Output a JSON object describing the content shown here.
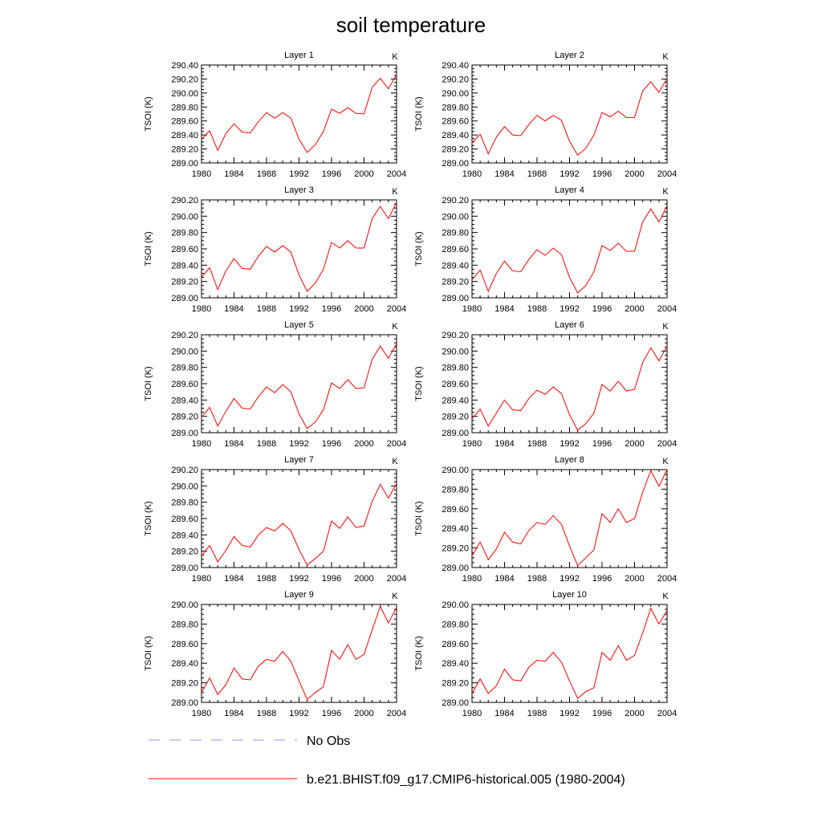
{
  "figure": {
    "title": "soil temperature"
  },
  "legend": [
    {
      "label": "No Obs",
      "color": "#9a9ae6",
      "dash": "dashed"
    },
    {
      "label": "b.e21.BHIST.f09_g17.CMIP6-historical.005 (1980-2004)",
      "color": "#ff0000",
      "dash": "solid"
    }
  ],
  "chart_data": [
    {
      "type": "line",
      "title": "Layer 1",
      "units": "K",
      "ylabel": "TSOI  (K)",
      "xlim": [
        1980,
        2004
      ],
      "ylim": [
        289.0,
        290.4
      ],
      "xticks": [
        "1980",
        "1984",
        "1988",
        "1992",
        "1996",
        "2000",
        "2004"
      ],
      "yticks": [
        "289.00",
        "289.20",
        "289.40",
        "289.60",
        "289.80",
        "290.00",
        "290.20",
        "290.40"
      ],
      "x": [
        1980,
        1981,
        1982,
        1983,
        1984,
        1985,
        1986,
        1987,
        1988,
        1989,
        1990,
        1991,
        1992,
        1993,
        1994,
        1995,
        1996,
        1997,
        1998,
        1999,
        2000,
        2001,
        2002,
        2003,
        2004
      ],
      "series": [
        {
          "color": "#ff0000",
          "values": [
            289.34,
            289.46,
            289.18,
            289.42,
            289.56,
            289.44,
            289.43,
            289.59,
            289.72,
            289.64,
            289.72,
            289.64,
            289.34,
            289.15,
            289.26,
            289.45,
            289.77,
            289.71,
            289.79,
            289.71,
            289.7,
            290.08,
            290.21,
            290.06,
            290.26
          ]
        }
      ]
    },
    {
      "type": "line",
      "title": "Layer 2",
      "units": "K",
      "ylabel": "TSOI  (K)",
      "xlim": [
        1980,
        2004
      ],
      "ylim": [
        289.0,
        290.4
      ],
      "xticks": [
        "1980",
        "1984",
        "1988",
        "1992",
        "1996",
        "2000",
        "2004"
      ],
      "yticks": [
        "289.00",
        "289.20",
        "289.40",
        "289.60",
        "289.80",
        "290.00",
        "290.20",
        "290.40"
      ],
      "x": [
        1980,
        1981,
        1982,
        1983,
        1984,
        1985,
        1986,
        1987,
        1988,
        1989,
        1990,
        1991,
        1992,
        1993,
        1994,
        1995,
        1996,
        1997,
        1998,
        1999,
        2000,
        2001,
        2002,
        2003,
        2004
      ],
      "series": [
        {
          "color": "#ff0000",
          "values": [
            289.29,
            289.41,
            289.13,
            289.37,
            289.52,
            289.4,
            289.39,
            289.55,
            289.68,
            289.6,
            289.68,
            289.61,
            289.31,
            289.11,
            289.21,
            289.4,
            289.72,
            289.66,
            289.74,
            289.65,
            289.65,
            290.03,
            290.16,
            290.01,
            290.21
          ]
        }
      ]
    },
    {
      "type": "line",
      "title": "Layer 3",
      "units": "K",
      "ylabel": "TSOI  (K)",
      "xlim": [
        1980,
        2004
      ],
      "ylim": [
        289.0,
        290.2
      ],
      "xticks": [
        "1980",
        "1984",
        "1988",
        "1992",
        "1996",
        "2000",
        "2004"
      ],
      "yticks": [
        "289.00",
        "289.20",
        "289.40",
        "289.60",
        "289.80",
        "290.00",
        "290.20"
      ],
      "x": [
        1980,
        1981,
        1982,
        1983,
        1984,
        1985,
        1986,
        1987,
        1988,
        1989,
        1990,
        1991,
        1992,
        1993,
        1994,
        1995,
        1996,
        1997,
        1998,
        1999,
        2000,
        2001,
        2002,
        2003,
        2004
      ],
      "series": [
        {
          "color": "#ff0000",
          "values": [
            289.25,
            289.37,
            289.1,
            289.33,
            289.48,
            289.36,
            289.35,
            289.51,
            289.63,
            289.56,
            289.64,
            289.56,
            289.28,
            289.08,
            289.18,
            289.35,
            289.68,
            289.61,
            289.7,
            289.61,
            289.61,
            289.97,
            290.12,
            289.97,
            290.17
          ]
        }
      ]
    },
    {
      "type": "line",
      "title": "Layer 4",
      "units": "K",
      "ylabel": "TSOI  (K)",
      "xlim": [
        1980,
        2004
      ],
      "ylim": [
        289.0,
        290.2
      ],
      "xticks": [
        "1980",
        "1984",
        "1988",
        "1992",
        "1996",
        "2000",
        "2004"
      ],
      "yticks": [
        "289.00",
        "289.20",
        "289.40",
        "289.60",
        "289.80",
        "290.00",
        "290.20"
      ],
      "x": [
        1980,
        1981,
        1982,
        1983,
        1984,
        1985,
        1986,
        1987,
        1988,
        1989,
        1990,
        1991,
        1992,
        1993,
        1994,
        1995,
        1996,
        1997,
        1998,
        1999,
        2000,
        2001,
        2002,
        2003,
        2004
      ],
      "series": [
        {
          "color": "#ff0000",
          "values": [
            289.22,
            289.34,
            289.08,
            289.3,
            289.45,
            289.33,
            289.32,
            289.47,
            289.59,
            289.52,
            289.61,
            289.53,
            289.25,
            289.06,
            289.15,
            289.32,
            289.64,
            289.58,
            289.67,
            289.57,
            289.57,
            289.93,
            290.09,
            289.93,
            290.13
          ]
        }
      ]
    },
    {
      "type": "line",
      "title": "Layer 5",
      "units": "K",
      "ylabel": "TSOI  (K)",
      "xlim": [
        1980,
        2004
      ],
      "ylim": [
        289.0,
        290.2
      ],
      "xticks": [
        "1980",
        "1984",
        "1988",
        "1992",
        "1996",
        "2000",
        "2004"
      ],
      "yticks": [
        "289.00",
        "289.20",
        "289.40",
        "289.60",
        "289.80",
        "290.00",
        "290.20"
      ],
      "x": [
        1980,
        1981,
        1982,
        1983,
        1984,
        1985,
        1986,
        1987,
        1988,
        1989,
        1990,
        1991,
        1992,
        1993,
        1994,
        1995,
        1996,
        1997,
        1998,
        1999,
        2000,
        2001,
        2002,
        2003,
        2004
      ],
      "series": [
        {
          "color": "#ff0000",
          "values": [
            289.19,
            289.31,
            289.08,
            289.26,
            289.42,
            289.3,
            289.29,
            289.44,
            289.56,
            289.49,
            289.59,
            289.5,
            289.23,
            289.05,
            289.13,
            289.28,
            289.61,
            289.54,
            289.65,
            289.54,
            289.55,
            289.9,
            290.06,
            289.91,
            290.09
          ]
        }
      ]
    },
    {
      "type": "line",
      "title": "Layer 6",
      "units": "K",
      "ylabel": "TSOI  (K)",
      "xlim": [
        1980,
        2004
      ],
      "ylim": [
        289.0,
        290.2
      ],
      "xticks": [
        "1980",
        "1984",
        "1988",
        "1992",
        "1996",
        "2000",
        "2004"
      ],
      "yticks": [
        "289.00",
        "289.20",
        "289.40",
        "289.60",
        "289.80",
        "290.00",
        "290.20"
      ],
      "x": [
        1980,
        1981,
        1982,
        1983,
        1984,
        1985,
        1986,
        1987,
        1988,
        1989,
        1990,
        1991,
        1992,
        1993,
        1994,
        1995,
        1996,
        1997,
        1998,
        1999,
        2000,
        2001,
        2002,
        2003,
        2004
      ],
      "series": [
        {
          "color": "#ff0000",
          "values": [
            289.17,
            289.29,
            289.08,
            289.24,
            289.4,
            289.28,
            289.27,
            289.42,
            289.52,
            289.47,
            289.56,
            289.48,
            289.22,
            289.03,
            289.11,
            289.24,
            289.59,
            289.51,
            289.63,
            289.51,
            289.53,
            289.86,
            290.04,
            289.88,
            290.06
          ]
        }
      ]
    },
    {
      "type": "line",
      "title": "Layer 7",
      "units": "K",
      "ylabel": "TSOI  (K)",
      "xlim": [
        1980,
        2004
      ],
      "ylim": [
        289.0,
        290.2
      ],
      "xticks": [
        "1980",
        "1984",
        "1988",
        "1992",
        "1996",
        "2000",
        "2004"
      ],
      "yticks": [
        "289.00",
        "289.20",
        "289.40",
        "289.60",
        "289.80",
        "290.00",
        "290.20"
      ],
      "x": [
        1980,
        1981,
        1982,
        1983,
        1984,
        1985,
        1986,
        1987,
        1988,
        1989,
        1990,
        1991,
        1992,
        1993,
        1994,
        1995,
        1996,
        1997,
        1998,
        1999,
        2000,
        2001,
        2002,
        2003,
        2004
      ],
      "series": [
        {
          "color": "#ff0000",
          "values": [
            289.14,
            289.27,
            289.07,
            289.21,
            289.38,
            289.27,
            289.25,
            289.4,
            289.49,
            289.45,
            289.54,
            289.45,
            289.22,
            289.03,
            289.11,
            289.2,
            289.57,
            289.48,
            289.62,
            289.49,
            289.51,
            289.81,
            290.02,
            289.85,
            290.03
          ]
        }
      ]
    },
    {
      "type": "line",
      "title": "Layer 8",
      "units": "K",
      "ylabel": "TSOI  (K)",
      "xlim": [
        1980,
        2004
      ],
      "ylim": [
        289.0,
        290.0
      ],
      "xticks": [
        "1980",
        "1984",
        "1988",
        "1992",
        "1996",
        "2000",
        "2004"
      ],
      "yticks": [
        "289.00",
        "289.20",
        "289.40",
        "289.60",
        "289.80",
        "290.00"
      ],
      "x": [
        1980,
        1981,
        1982,
        1983,
        1984,
        1985,
        1986,
        1987,
        1988,
        1989,
        1990,
        1991,
        1992,
        1993,
        1994,
        1995,
        1996,
        1997,
        1998,
        1999,
        2000,
        2001,
        2002,
        2003,
        2004
      ],
      "series": [
        {
          "color": "#ff0000",
          "values": [
            289.12,
            289.26,
            289.08,
            289.19,
            289.36,
            289.26,
            289.24,
            289.38,
            289.46,
            289.44,
            289.53,
            289.44,
            289.22,
            289.02,
            289.1,
            289.18,
            289.55,
            289.46,
            289.6,
            289.46,
            289.5,
            289.77,
            289.99,
            289.83,
            290.0
          ]
        }
      ]
    },
    {
      "type": "line",
      "title": "Layer 9",
      "units": "K",
      "ylabel": "TSOI  (K)",
      "xlim": [
        1980,
        2004
      ],
      "ylim": [
        289.0,
        290.0
      ],
      "xticks": [
        "1980",
        "1984",
        "1988",
        "1992",
        "1996",
        "2000",
        "2004"
      ],
      "yticks": [
        "289.00",
        "289.20",
        "289.40",
        "289.60",
        "289.80",
        "290.00"
      ],
      "x": [
        1980,
        1981,
        1982,
        1983,
        1984,
        1985,
        1986,
        1987,
        1988,
        1989,
        1990,
        1991,
        1992,
        1993,
        1994,
        1995,
        1996,
        1997,
        1998,
        1999,
        2000,
        2001,
        2002,
        2003,
        2004
      ],
      "series": [
        {
          "color": "#ff0000",
          "values": [
            289.1,
            289.25,
            289.08,
            289.18,
            289.35,
            289.24,
            289.23,
            289.37,
            289.44,
            289.42,
            289.52,
            289.42,
            289.22,
            289.03,
            289.1,
            289.16,
            289.53,
            289.44,
            289.59,
            289.44,
            289.49,
            289.74,
            289.98,
            289.81,
            289.97
          ]
        }
      ]
    },
    {
      "type": "line",
      "title": "Layer 10",
      "units": "K",
      "ylabel": "TSOI  (K)",
      "xlim": [
        1980,
        2004
      ],
      "ylim": [
        289.0,
        290.0
      ],
      "xticks": [
        "1980",
        "1984",
        "1988",
        "1992",
        "1996",
        "2000",
        "2004"
      ],
      "yticks": [
        "289.00",
        "289.20",
        "289.40",
        "289.60",
        "289.80",
        "290.00"
      ],
      "x": [
        1980,
        1981,
        1982,
        1983,
        1984,
        1985,
        1986,
        1987,
        1988,
        1989,
        1990,
        1991,
        1992,
        1993,
        1994,
        1995,
        1996,
        1997,
        1998,
        1999,
        2000,
        2001,
        2002,
        2003,
        2004
      ],
      "series": [
        {
          "color": "#ff0000",
          "values": [
            289.09,
            289.24,
            289.09,
            289.17,
            289.34,
            289.23,
            289.22,
            289.36,
            289.43,
            289.42,
            289.51,
            289.41,
            289.22,
            289.04,
            289.11,
            289.15,
            289.51,
            289.43,
            289.58,
            289.43,
            289.48,
            289.71,
            289.96,
            289.8,
            289.94
          ]
        }
      ]
    }
  ]
}
